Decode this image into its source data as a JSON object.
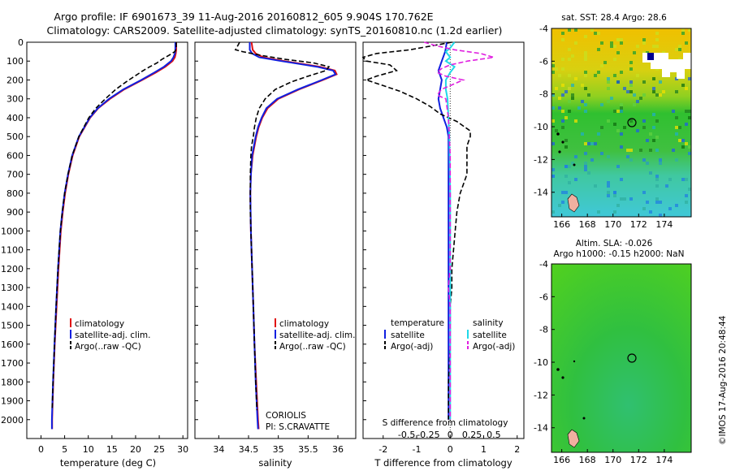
{
  "header": {
    "title_line1": "Argo profile: IF 6901673_39 11-Aug-2016 20160812_605 9.904S 170.762E",
    "title_line2": "Climatology: CARS2009. Satellite-adjusted climatology: synTS_20160810.nc (1.2d earlier)"
  },
  "footer": {
    "credit": "©IMOS 17-Aug-2016 20:48:44"
  },
  "colors": {
    "climatology": "#e01010",
    "satellite": "#1020e0",
    "argo": "#000000",
    "satellite_salinity": "#20d8e8",
    "argo_adj_salinity": "#e020e0"
  },
  "chart_data": [
    {
      "type": "line",
      "panel": "temperature",
      "xlabel": "temperature (deg C)",
      "xticks": [
        "0",
        "5",
        "10",
        "15",
        "20",
        "25",
        "30"
      ],
      "xlim": [
        -3,
        31
      ],
      "ylim": [
        2100,
        0
      ],
      "yticks": [
        "0",
        "100",
        "200",
        "300",
        "400",
        "500",
        "600",
        "700",
        "800",
        "900",
        "1000",
        "1100",
        "1200",
        "1300",
        "1400",
        "1500",
        "1600",
        "1700",
        "1800",
        "1900",
        "2000"
      ],
      "legend": [
        "climatology",
        "satellite-adj. clim.",
        "Argo(..raw -QC)"
      ],
      "series": [
        {
          "name": "climatology",
          "depth": [
            0,
            40,
            60,
            80,
            100,
            130,
            160,
            200,
            250,
            300,
            350,
            400,
            500,
            600,
            700,
            800,
            900,
            1000,
            1200,
            1400,
            1600,
            1800,
            2000,
            2050
          ],
          "values": [
            28.6,
            28.6,
            28.5,
            28.3,
            27.8,
            26.3,
            24.3,
            21.4,
            17.6,
            14.6,
            12.1,
            10.4,
            8.1,
            6.7,
            5.8,
            5.1,
            4.6,
            4.2,
            3.7,
            3.3,
            2.9,
            2.6,
            2.35,
            2.35
          ]
        },
        {
          "name": "satellite-adj. clim.",
          "depth": [
            0,
            40,
            60,
            80,
            100,
            130,
            160,
            200,
            250,
            300,
            350,
            400,
            500,
            600,
            700,
            800,
            900,
            1000,
            1200,
            1400,
            1600,
            1800,
            2000,
            2050
          ],
          "values": [
            28.4,
            28.4,
            28.3,
            28.0,
            27.5,
            26.0,
            24.0,
            21.2,
            17.4,
            14.4,
            12.0,
            10.3,
            8.0,
            6.6,
            5.7,
            5.0,
            4.5,
            4.1,
            3.6,
            3.2,
            2.85,
            2.55,
            2.3,
            2.3
          ]
        },
        {
          "name": "Argo(..raw -QC)",
          "depth": [
            0,
            30,
            50,
            70,
            90,
            110,
            130,
            150,
            180,
            210,
            250,
            300,
            350,
            400,
            500,
            600,
            700,
            800,
            900,
            1000,
            1200,
            1400,
            1600,
            1800,
            1950
          ],
          "values": [
            28.6,
            28.6,
            28.3,
            27.0,
            25.6,
            24.5,
            23.0,
            21.6,
            19.8,
            18.0,
            15.8,
            13.6,
            11.6,
            10.1,
            8.0,
            6.6,
            5.7,
            5.0,
            4.5,
            4.1,
            3.6,
            3.2,
            2.85,
            2.55,
            2.35
          ]
        }
      ]
    },
    {
      "type": "line",
      "panel": "salinity",
      "xlabel": "salinity",
      "xticks": [
        "34",
        "34.5",
        "35",
        "35.5",
        "36"
      ],
      "xlim": [
        33.6,
        36.3
      ],
      "ylim": [
        2100,
        0
      ],
      "legend": [
        "climatology",
        "satellite-adj. clim.",
        "Argo(..raw -QC)"
      ],
      "annotation": [
        "CORIOLIS",
        "PI: S.CRAVATTE"
      ],
      "series": [
        {
          "name": "climatology",
          "depth": [
            0,
            40,
            60,
            80,
            100,
            130,
            150,
            170,
            200,
            250,
            300,
            350,
            400,
            450,
            500,
            600,
            700,
            800,
            1000,
            1200,
            1400,
            1600,
            1800,
            2000,
            2050
          ],
          "values": [
            34.55,
            34.57,
            34.62,
            34.75,
            35.1,
            35.7,
            35.95,
            35.98,
            35.75,
            35.35,
            35.0,
            34.82,
            34.73,
            34.67,
            34.63,
            34.57,
            34.54,
            34.53,
            34.54,
            34.56,
            34.58,
            34.6,
            34.63,
            34.66,
            34.67
          ]
        },
        {
          "name": "satellite-adj. clim.",
          "depth": [
            0,
            40,
            60,
            80,
            100,
            130,
            150,
            170,
            200,
            250,
            300,
            350,
            400,
            450,
            500,
            600,
            700,
            800,
            1000,
            1200,
            1400,
            1600,
            1800,
            2000,
            2050
          ],
          "values": [
            34.52,
            34.52,
            34.56,
            34.68,
            35.05,
            35.65,
            35.92,
            35.96,
            35.73,
            35.33,
            34.98,
            34.8,
            34.72,
            34.66,
            34.62,
            34.56,
            34.54,
            34.53,
            34.54,
            34.56,
            34.58,
            34.6,
            34.62,
            34.65,
            34.66
          ]
        },
        {
          "name": "Argo(..raw -QC)",
          "depth": [
            0,
            30,
            40,
            50,
            70,
            90,
            110,
            130,
            150,
            180,
            210,
            250,
            300,
            350,
            400,
            450,
            500,
            550,
            600,
            700,
            800,
            900,
            1000,
            1200,
            1400,
            1600,
            1800,
            1950
          ],
          "values": [
            34.35,
            34.3,
            34.28,
            34.4,
            34.72,
            35.1,
            35.6,
            35.85,
            35.8,
            35.5,
            35.22,
            34.95,
            34.78,
            34.68,
            34.63,
            34.6,
            34.58,
            34.55,
            34.54,
            34.53,
            34.53,
            34.53,
            34.54,
            34.56,
            34.58,
            34.6,
            34.62,
            34.64
          ]
        }
      ]
    },
    {
      "type": "line",
      "panel": "differences",
      "xlabel_bottom": "T difference from climatology",
      "xlabel_top": "S difference from climatology",
      "xticks_T": [
        "-2",
        "-1",
        "0",
        "1",
        "2"
      ],
      "xlim_T": [
        -2.6,
        2.2
      ],
      "xticks_S": [
        "-0.5",
        "-0.25",
        "0",
        "0.25",
        "0.5"
      ],
      "legend_left_title": "temperature",
      "legend_right_title": "salinity",
      "legend": [
        "satellite",
        "Argo(-adj)",
        "satellite",
        "Argo(-adj)"
      ],
      "series": [
        {
          "name": "satellite",
          "variable": "T",
          "depth": [
            0,
            50,
            100,
            150,
            200,
            250,
            300,
            350,
            400,
            450,
            500,
            600,
            800,
            1000,
            1500,
            2000
          ],
          "values": [
            -0.1,
            -0.15,
            -0.25,
            -0.35,
            -0.25,
            -0.3,
            -0.35,
            -0.3,
            -0.2,
            -0.1,
            -0.05,
            -0.05,
            -0.05,
            -0.05,
            -0.05,
            -0.05
          ]
        },
        {
          "name": "Argo(-adj)",
          "variable": "T",
          "depth": [
            0,
            40,
            60,
            80,
            100,
            120,
            150,
            180,
            200,
            230,
            260,
            300,
            340,
            380,
            420,
            470,
            500,
            550,
            600,
            700,
            800,
            900,
            1000,
            1100,
            1200,
            1300,
            1400,
            1500,
            1600,
            1800,
            2000
          ],
          "values": [
            0.05,
            -1.2,
            -2.2,
            -2.6,
            -2.5,
            -1.8,
            -1.6,
            -2.2,
            -2.5,
            -2.0,
            -1.5,
            -1.0,
            -0.6,
            -0.3,
            0.2,
            0.6,
            0.6,
            0.5,
            0.5,
            0.5,
            0.3,
            0.2,
            0.15,
            0.1,
            0.05,
            0.05,
            0.0,
            0.0,
            0.0,
            -0.05,
            -0.05
          ]
        },
        {
          "name": "satellite",
          "variable": "S",
          "depth": [
            0,
            30,
            50,
            80,
            100,
            130,
            160,
            200,
            250,
            300,
            400,
            500,
            800,
            1000,
            1500,
            2000
          ],
          "values": [
            0.05,
            0.0,
            -0.05,
            0.0,
            -0.05,
            0.05,
            0.0,
            -0.05,
            -0.05,
            -0.03,
            -0.02,
            -0.01,
            0.0,
            0.0,
            0.0,
            0.0
          ]
        },
        {
          "name": "Argo(-adj)",
          "variable": "S",
          "depth": [
            0,
            20,
            40,
            60,
            80,
            100,
            120,
            140,
            160,
            180,
            200,
            220,
            250,
            280,
            300,
            400,
            600,
            800,
            1000,
            1200,
            1300,
            1400,
            2000
          ],
          "values": [
            -0.3,
            -0.15,
            0.05,
            0.35,
            0.5,
            0.2,
            0.0,
            -0.1,
            -0.15,
            -0.05,
            0.15,
            0.05,
            -0.1,
            -0.15,
            -0.05,
            -0.02,
            0.0,
            0.0,
            0.0,
            0.0,
            -0.02,
            0.0,
            0.0
          ]
        }
      ]
    }
  ],
  "maps": [
    {
      "title": "sat. SST: 28.4  Argo: 28.6",
      "xticks": [
        "166",
        "168",
        "170",
        "172",
        "174"
      ],
      "yticks": [
        "-4",
        "-6",
        "-8",
        "-10",
        "-12",
        "-14"
      ]
    },
    {
      "title_line1": "Altim. SLA: -0.026",
      "title_line2": "Argo h1000: -0.15 h2000: NaN",
      "xticks": [
        "166",
        "168",
        "170",
        "172",
        "174"
      ],
      "yticks": [
        "-4",
        "-6",
        "-8",
        "-10",
        "-12",
        "-14"
      ]
    }
  ]
}
